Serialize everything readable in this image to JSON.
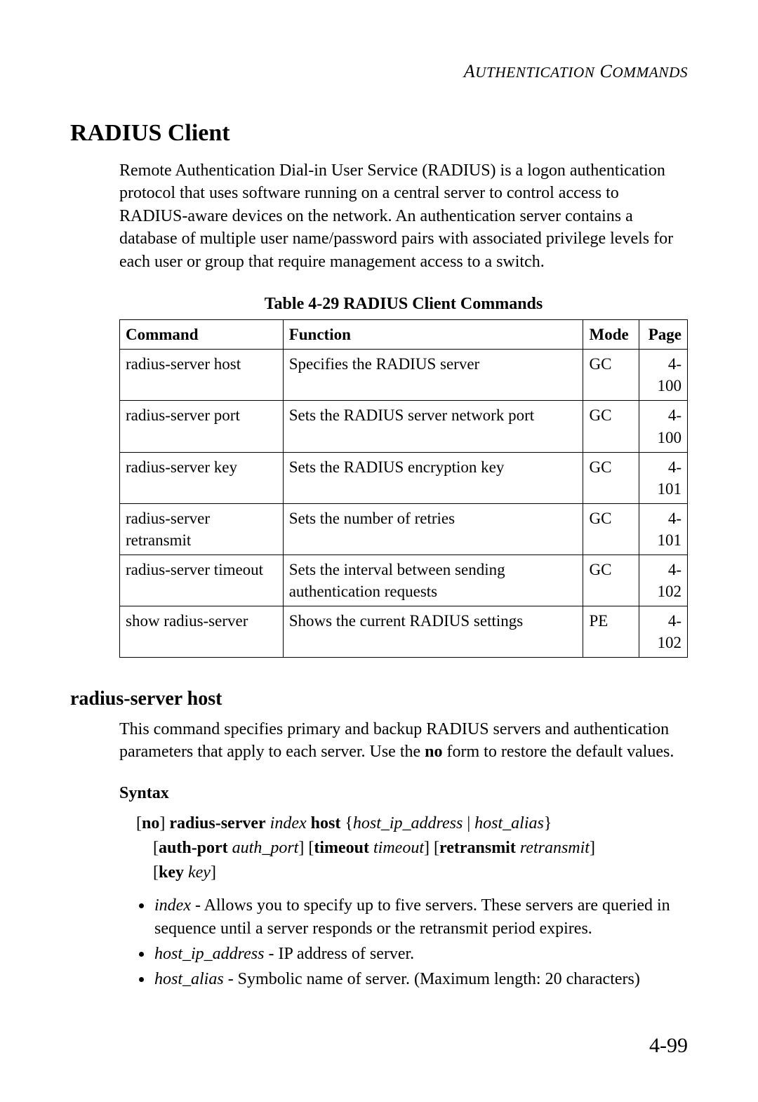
{
  "header": {
    "running_head_html": "A<span style=\"font-size:0.82em\">UTHENTICATION</span> C<span style=\"font-size:0.82em\">OMMANDS</span>"
  },
  "section": {
    "title": "RADIUS Client",
    "intro": "Remote Authentication Dial-in User Service (RADIUS) is a logon authentication protocol that uses software running on a central server to control access to RADIUS-aware devices on the network. An authentication server contains a database of multiple user name/password pairs with associated privilege levels for each user or group that require management access to a switch."
  },
  "table": {
    "caption": "Table 4-29  RADIUS Client Commands",
    "columns": [
      "Command",
      "Function",
      "Mode",
      "Page"
    ],
    "rows": [
      [
        "radius-server host",
        "Specifies the RADIUS server",
        "GC",
        "4-100"
      ],
      [
        "radius-server port",
        "Sets the RADIUS server network port",
        "GC",
        "4-100"
      ],
      [
        "radius-server key",
        "Sets the RADIUS encryption key",
        "GC",
        "4-101"
      ],
      [
        "radius-server retransmit",
        "Sets the number of retries",
        "GC",
        "4-101"
      ],
      [
        "radius-server timeout",
        "Sets the interval between sending authentication requests",
        "GC",
        "4-102"
      ],
      [
        "show radius-server",
        "Shows the current RADIUS settings",
        "PE",
        "4-102"
      ]
    ]
  },
  "subsection": {
    "title": "radius-server host",
    "body_html": "This command specifies primary and backup RADIUS servers and authentication parameters that apply to each server. Use the <span class=\"b\">no</span> form to restore the default values.",
    "syntax_label": "Syntax",
    "syntax_line1_html": "[<span class=\"b\">no</span>] <span class=\"b\">radius-server</span> <span class=\"i\">index</span> <span class=\"b\">host</span> {<span class=\"i\">host_ip_address</span> | <span class=\"i\">host_alias</span>}",
    "syntax_line2_html": "[<span class=\"b\">auth-port</span> <span class=\"i\">auth_port</span>] [<span class=\"b\">timeout</span> <span class=\"i\">timeout</span>] [<span class=\"b\">retransmit</span> <span class=\"i\">retransmit</span>]",
    "syntax_line3_html": "[<span class=\"b\">key</span> <span class=\"i\">key</span>]",
    "params": [
      "<span class=\"i\">index</span> - Allows you to specify up to five servers. These servers are queried in sequence until a server responds or the retransmit period expires.",
      "<span class=\"i\">host_ip_address</span> - IP address of server.",
      "<span class=\"i\">host_alias</span> - Symbolic name of server. (Maximum length: 20 characters)"
    ]
  },
  "footer": {
    "page_number": "4-99"
  }
}
